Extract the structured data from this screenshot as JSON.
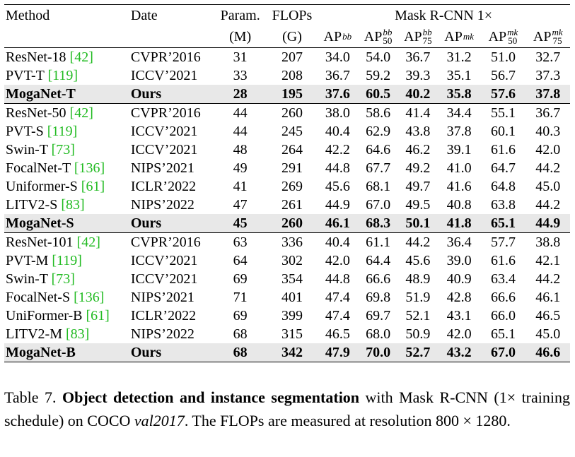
{
  "table": {
    "header": {
      "method": "Method",
      "date": "Date",
      "param": "Param.",
      "param_unit": "(M)",
      "flops": "FLOPs",
      "flops_unit": "(G)",
      "group": "Mask R-CNN 1×",
      "metrics": [
        {
          "base": "AP",
          "sup": "bb"
        },
        {
          "base": "AP",
          "sup": "bb",
          "sub": "50"
        },
        {
          "base": "AP",
          "sup": "bb",
          "sub": "75"
        },
        {
          "base": "AP",
          "sup": "mk"
        },
        {
          "base": "AP",
          "sup": "mk",
          "sub": "50"
        },
        {
          "base": "AP",
          "sup": "mk",
          "sub": "75"
        }
      ]
    },
    "groups": [
      {
        "rows": [
          {
            "method": "ResNet-18",
            "ref": "[42]",
            "date": "CVPR’2016",
            "cells": [
              "31",
              "207",
              "34.0",
              "54.0",
              "36.7",
              "31.2",
              "51.0",
              "32.7"
            ]
          },
          {
            "method": "PVT-T",
            "ref": "[119]",
            "date": "ICCV’2021",
            "cells": [
              "33",
              "208",
              "36.7",
              "59.2",
              "39.3",
              "35.1",
              "56.7",
              "37.3"
            ]
          },
          {
            "method": "MogaNet-T",
            "date": "Ours",
            "highlight": true,
            "cells": [
              "28",
              "195",
              "37.6",
              "60.5",
              "40.2",
              "35.8",
              "57.6",
              "37.8"
            ]
          }
        ]
      },
      {
        "rows": [
          {
            "method": "ResNet-50",
            "ref": "[42]",
            "date": "CVPR’2016",
            "cells": [
              "44",
              "260",
              "38.0",
              "58.6",
              "41.4",
              "34.4",
              "55.1",
              "36.7"
            ]
          },
          {
            "method": "PVT-S",
            "ref": "[119]",
            "date": "ICCV’2021",
            "cells": [
              "44",
              "245",
              "40.4",
              "62.9",
              "43.8",
              "37.8",
              "60.1",
              "40.3"
            ]
          },
          {
            "method": "Swin-T",
            "ref": "[73]",
            "date": "ICCV’2021",
            "cells": [
              "48",
              "264",
              "42.2",
              "64.6",
              "46.2",
              "39.1",
              "61.6",
              "42.0"
            ]
          },
          {
            "method": "FocalNet-T",
            "ref": "[136]",
            "date": "NIPS’2021",
            "cells": [
              "49",
              "291",
              "44.8",
              "67.7",
              "49.2",
              "41.0",
              "64.7",
              "44.2"
            ]
          },
          {
            "method": "Uniformer-S",
            "ref": "[61]",
            "date": "ICLR’2022",
            "cells": [
              "41",
              "269",
              "45.6",
              "68.1",
              "49.7",
              "41.6",
              "64.8",
              "45.0"
            ]
          },
          {
            "method": "LITV2-S",
            "ref": "[83]",
            "date": "NIPS’2022",
            "cells": [
              "47",
              "261",
              "44.9",
              "67.0",
              "49.5",
              "40.8",
              "63.8",
              "44.2"
            ]
          },
          {
            "method": "MogaNet-S",
            "date": "Ours",
            "highlight": true,
            "cells": [
              "45",
              "260",
              "46.1",
              "68.3",
              "50.1",
              "41.8",
              "65.1",
              "44.9"
            ]
          }
        ]
      },
      {
        "rows": [
          {
            "method": "ResNet-101",
            "ref": "[42]",
            "date": "CVPR’2016",
            "cells": [
              "63",
              "336",
              "40.4",
              "61.1",
              "44.2",
              "36.4",
              "57.7",
              "38.8"
            ]
          },
          {
            "method": "PVT-M",
            "ref": "[119]",
            "date": "ICCV’2021",
            "cells": [
              "64",
              "302",
              "42.0",
              "64.4",
              "45.6",
              "39.0",
              "61.6",
              "42.1"
            ]
          },
          {
            "method": "Swin-T",
            "ref": "[73]",
            "date": "ICCV’2021",
            "cells": [
              "69",
              "354",
              "44.8",
              "66.6",
              "48.9",
              "40.9",
              "63.4",
              "44.2"
            ]
          },
          {
            "method": "FocalNet-S",
            "ref": "[136]",
            "date": "NIPS’2021",
            "cells": [
              "71",
              "401",
              "47.4",
              "69.8",
              "51.9",
              "42.8",
              "66.6",
              "46.1"
            ]
          },
          {
            "method": "UniFormer-B",
            "ref": "[61]",
            "date": "ICLR’2022",
            "cells": [
              "69",
              "399",
              "47.4",
              "69.7",
              "52.1",
              "43.1",
              "66.0",
              "46.5"
            ]
          },
          {
            "method": "LITV2-M",
            "ref": "[83]",
            "date": "NIPS’2022",
            "cells": [
              "68",
              "315",
              "46.5",
              "68.0",
              "50.9",
              "42.0",
              "65.1",
              "45.0"
            ]
          },
          {
            "method": "MogaNet-B",
            "date": "Ours",
            "highlight": true,
            "cells": [
              "68",
              "342",
              "47.9",
              "70.0",
              "52.7",
              "43.2",
              "67.0",
              "46.6"
            ]
          }
        ]
      }
    ]
  },
  "caption": [
    {
      "text": "Table 7. "
    },
    {
      "text": "Object detection and instance segmentation",
      "style": "bold"
    },
    {
      "text": " with Mask R-CNN (1× training schedule) on COCO "
    },
    {
      "text": "val2017",
      "style": "italic"
    },
    {
      "text": ". The FLOPs are measured at resolution 800 × 1280."
    }
  ]
}
